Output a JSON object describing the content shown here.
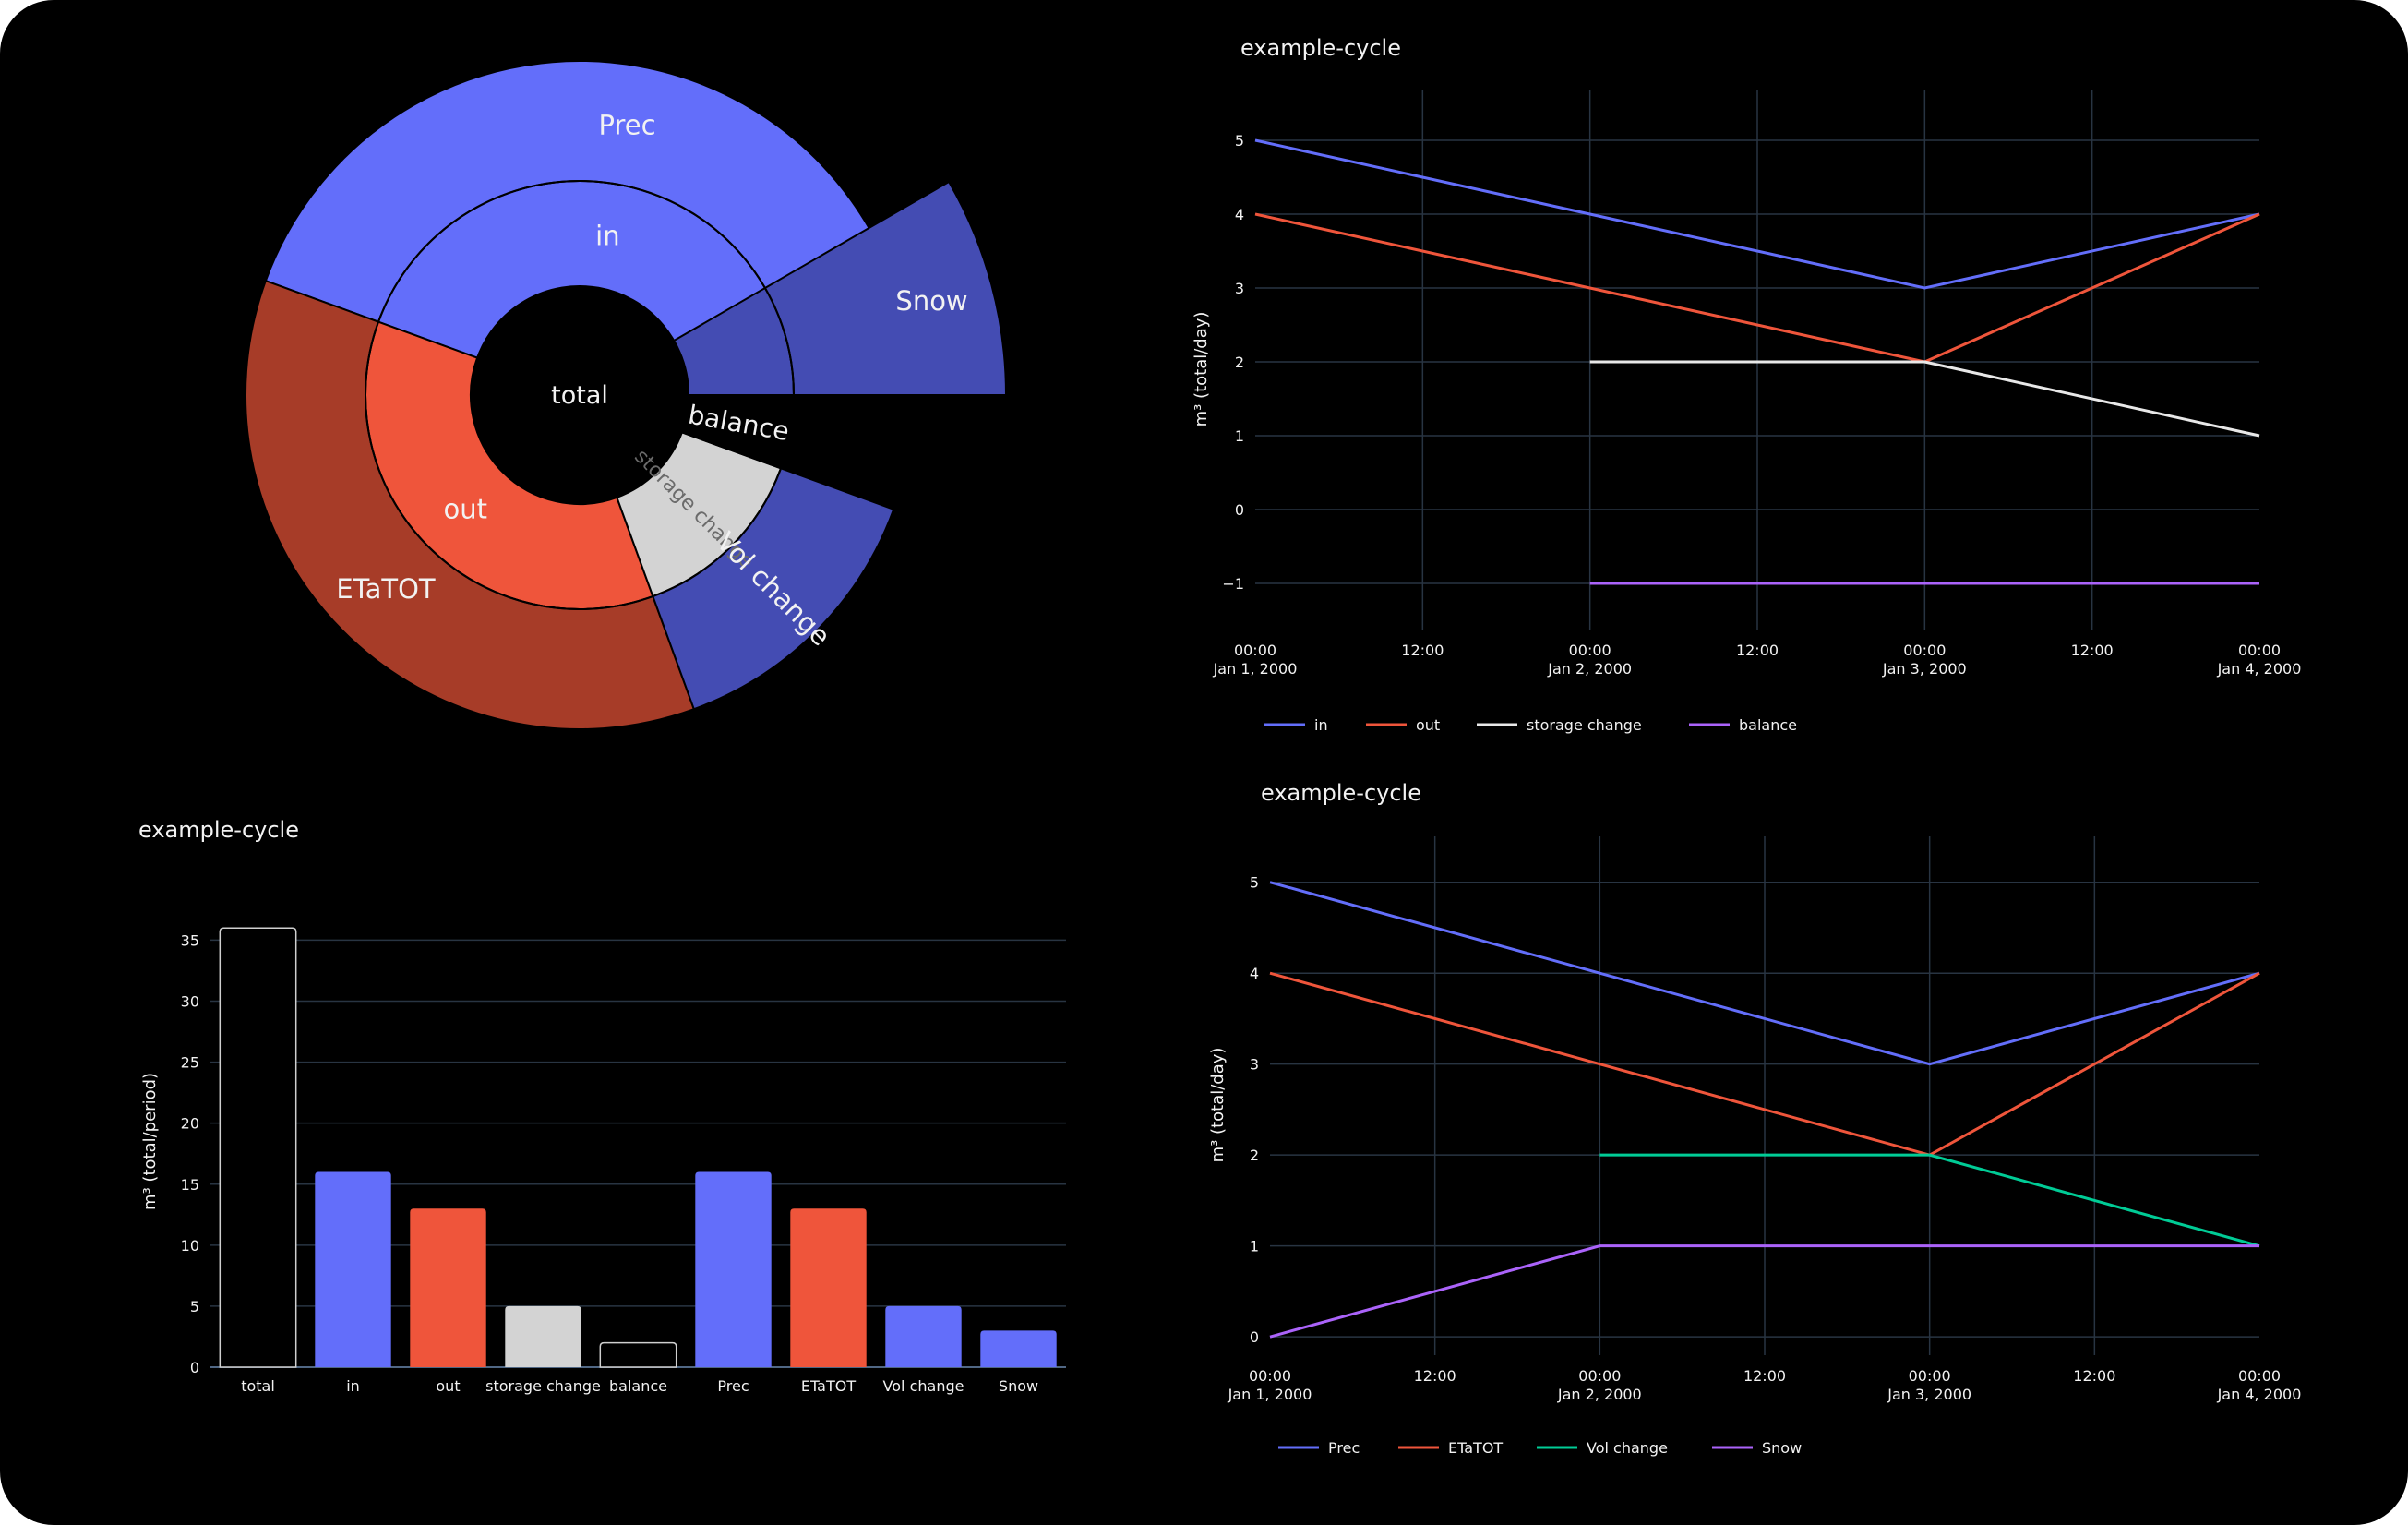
{
  "colors": {
    "background": "#000000",
    "blue": "#636efa",
    "red": "#ef553b",
    "light_gray": "#d3d3d3",
    "dark_blue": "#444cb3",
    "dark_red": "#a73c28",
    "green": "#00cc96",
    "purple": "#ab63fa",
    "grid": "#283442",
    "text": "#f2f2f2"
  },
  "chart_data": [
    {
      "id": "sunburst",
      "type": "sunburst",
      "nodes": [
        {
          "id": "total",
          "label": "total",
          "parent": "",
          "value": 36
        },
        {
          "id": "in",
          "label": "in",
          "parent": "total",
          "value": 16
        },
        {
          "id": "out",
          "label": "out",
          "parent": "total",
          "value": 13
        },
        {
          "id": "storage_change",
          "label": "storage change",
          "parent": "total",
          "value": 5
        },
        {
          "id": "balance",
          "label": "balance",
          "parent": "total",
          "value": 2
        },
        {
          "id": "prec",
          "label": "Prec",
          "parent": "in",
          "value": 16
        },
        {
          "id": "etatot",
          "label": "ETaTOT",
          "parent": "out",
          "value": 13
        },
        {
          "id": "vol_change",
          "label": "Vol change",
          "parent": "storage change",
          "value": 5
        },
        {
          "id": "snow",
          "label": "Snow",
          "parent": "total",
          "value": 3
        }
      ]
    },
    {
      "id": "bar",
      "type": "bar",
      "title": "example-cycle",
      "ylabel": "m³ (total/period)",
      "categories": [
        "total",
        "in",
        "out",
        "storage change",
        "balance",
        "Prec",
        "ETaTOT",
        "Vol change",
        "Snow"
      ],
      "values": [
        36,
        16,
        13,
        5,
        2,
        16,
        13,
        5,
        3
      ],
      "ylim": [
        0,
        37
      ],
      "yticks": [
        0,
        5,
        10,
        15,
        20,
        25,
        30,
        35
      ]
    },
    {
      "id": "line_top",
      "type": "line",
      "title": "example-cycle",
      "ylabel": "m³ (total/day)",
      "x": [
        "2000-01-01 00:00",
        "2000-01-02 00:00",
        "2000-01-03 00:00",
        "2000-01-04 00:00"
      ],
      "xticks": [
        [
          "00:00",
          "Jan 1, 2000"
        ],
        [
          "12:00",
          ""
        ],
        [
          "00:00",
          "Jan 2, 2000"
        ],
        [
          "12:00",
          ""
        ],
        [
          "00:00",
          "Jan 3, 2000"
        ],
        [
          "12:00",
          ""
        ],
        [
          "00:00",
          "Jan 4, 2000"
        ]
      ],
      "ylim": [
        -1.5,
        5.3
      ],
      "yticks": [
        -1,
        0,
        1,
        2,
        3,
        4,
        5
      ],
      "series": [
        {
          "name": "in",
          "values": [
            5,
            4,
            3,
            4
          ]
        },
        {
          "name": "out",
          "values": [
            4,
            3,
            2,
            4
          ]
        },
        {
          "name": "storage change",
          "values": [
            null,
            2,
            2,
            1
          ]
        },
        {
          "name": "balance",
          "values": [
            null,
            -1,
            -1,
            -1
          ]
        }
      ]
    },
    {
      "id": "line_bottom",
      "type": "line",
      "title": "example-cycle",
      "ylabel": "m³ (total/day)",
      "x": [
        "2000-01-01 00:00",
        "2000-01-02 00:00",
        "2000-01-03 00:00",
        "2000-01-04 00:00"
      ],
      "xticks": [
        [
          "00:00",
          "Jan 1, 2000"
        ],
        [
          "12:00",
          ""
        ],
        [
          "00:00",
          "Jan 2, 2000"
        ],
        [
          "12:00",
          ""
        ],
        [
          "00:00",
          "Jan 3, 2000"
        ],
        [
          "12:00",
          ""
        ],
        [
          "00:00",
          "Jan 4, 2000"
        ]
      ],
      "ylim": [
        -0.1,
        5.2
      ],
      "yticks": [
        0,
        1,
        2,
        3,
        4,
        5
      ],
      "series": [
        {
          "name": "Prec",
          "values": [
            5,
            4,
            3,
            4
          ]
        },
        {
          "name": "ETaTOT",
          "values": [
            4,
            3,
            2,
            4
          ]
        },
        {
          "name": "Vol change",
          "values": [
            null,
            2,
            2,
            1
          ]
        },
        {
          "name": "Snow",
          "values": [
            0,
            1,
            1,
            1
          ]
        }
      ]
    }
  ]
}
